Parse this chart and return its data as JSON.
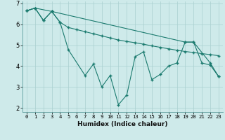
{
  "xlabel": "Humidex (Indice chaleur)",
  "background_color": "#ceeaea",
  "grid_color": "#aacfcf",
  "line_color": "#1a7a6e",
  "xlim": [
    -0.5,
    23.5
  ],
  "ylim": [
    1.8,
    7.1
  ],
  "xticks": [
    0,
    1,
    2,
    3,
    4,
    5,
    6,
    7,
    8,
    9,
    10,
    11,
    12,
    13,
    14,
    15,
    16,
    17,
    18,
    19,
    20,
    21,
    22,
    23
  ],
  "yticks": [
    2,
    3,
    4,
    5,
    6,
    7
  ],
  "line1_x": [
    0,
    1,
    2,
    3,
    4,
    5,
    6,
    7,
    8,
    9,
    10,
    11,
    12,
    13,
    14,
    15,
    16,
    17,
    18,
    19,
    20,
    21,
    22,
    23
  ],
  "line1_y": [
    6.65,
    6.78,
    6.2,
    6.62,
    6.1,
    5.85,
    5.75,
    5.65,
    5.55,
    5.45,
    5.35,
    5.25,
    5.18,
    5.12,
    5.05,
    4.97,
    4.9,
    4.83,
    4.76,
    4.7,
    4.65,
    4.6,
    4.55,
    4.5
  ],
  "line2_x": [
    0,
    1,
    2,
    3,
    4,
    5,
    7,
    8,
    9,
    10,
    11,
    12,
    13,
    14,
    15,
    16,
    17,
    18,
    19,
    20,
    21,
    22,
    23
  ],
  "line2_y": [
    6.65,
    6.78,
    6.18,
    6.62,
    6.1,
    4.78,
    3.55,
    4.1,
    3.0,
    3.55,
    2.15,
    2.62,
    4.45,
    4.68,
    3.35,
    3.6,
    4.0,
    4.15,
    5.15,
    5.15,
    4.15,
    4.05,
    3.5
  ],
  "line3_x": [
    0,
    1,
    3,
    19,
    20,
    22,
    23
  ],
  "line3_y": [
    6.65,
    6.78,
    6.62,
    5.15,
    5.15,
    4.15,
    3.5
  ]
}
